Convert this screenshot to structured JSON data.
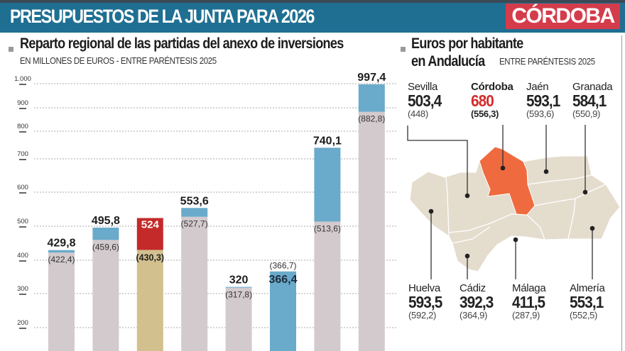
{
  "header": {
    "title": "PRESUPUESTOS DE LA JUNTA PARA 2026",
    "brand": "CÓRDOBA"
  },
  "colors": {
    "header_band": "#1f6f92",
    "brand_box": "#d43c4b",
    "prev_year": "#d3cacd",
    "increase": "#6aaacb",
    "highlight_2025": "#d2c08f",
    "highlight_2026": "#c42a2a",
    "cordoba_map": "#ef6a3e",
    "map_fill": "#e4dccd"
  },
  "left_section": {
    "title": "Reparto regional de las partidas del anexo de inversiones",
    "subtitle": "EN MILLONES DE EUROS - ENTRE PARÉNTESIS 2025"
  },
  "right_section": {
    "title_line1": "Euros por habitante",
    "title_line2": "en Andalucía",
    "subtitle": "ENTRE PARÉNTESIS 2025"
  },
  "chart_data": [
    {
      "type": "bar",
      "title": "Reparto regional de las partidas del anexo de inversiones",
      "subtitle": "EN MILLONES DE EUROS - ENTRE PARÉNTESIS 2025",
      "ylim": [
        150,
        1000
      ],
      "yticks": [
        "200",
        "300",
        "400",
        "500",
        "600",
        "700",
        "800",
        "900",
        "1.000"
      ],
      "ytick_values": [
        200,
        300,
        400,
        500,
        600,
        700,
        800,
        900,
        1000
      ],
      "grid": true,
      "series": [
        {
          "values": [
            422.4,
            459.6,
            430.3,
            527.7,
            317.8,
            366.7,
            513.6,
            882.8
          ]
        },
        {
          "values": [
            429.8,
            495.8,
            524,
            553.6,
            320,
            366.4,
            740.1,
            997.4
          ]
        }
      ],
      "labels_2026": [
        "429,8",
        "495,8",
        "524",
        "553,6",
        "320",
        "366,4",
        "740,1",
        "997,4"
      ],
      "labels_2025": [
        "(422,4)",
        "(459,6)",
        "(430,3)",
        "(527,7)",
        "(317,8)",
        "(366,7)",
        "(513,6)",
        "(882,8)"
      ],
      "highlight_index": 2
    },
    {
      "type": "map",
      "title": "Euros por habitante en Andalucía",
      "provinces": [
        {
          "name": "Sevilla",
          "value": "503,4",
          "prev": "(448)"
        },
        {
          "name": "Córdoba",
          "value": "680",
          "prev": "(556,3)",
          "highlight": true
        },
        {
          "name": "Jaén",
          "value": "593,1",
          "prev": "(593,6)"
        },
        {
          "name": "Granada",
          "value": "584,1",
          "prev": "(550,9)"
        },
        {
          "name": "Huelva",
          "value": "593,5",
          "prev": "(592,2)"
        },
        {
          "name": "Cádiz",
          "value": "392,3",
          "prev": "(364,9)"
        },
        {
          "name": "Málaga",
          "value": "411,5",
          "prev": "(287,9)"
        },
        {
          "name": "Almería",
          "value": "553,1",
          "prev": "(552,5)"
        }
      ]
    }
  ]
}
